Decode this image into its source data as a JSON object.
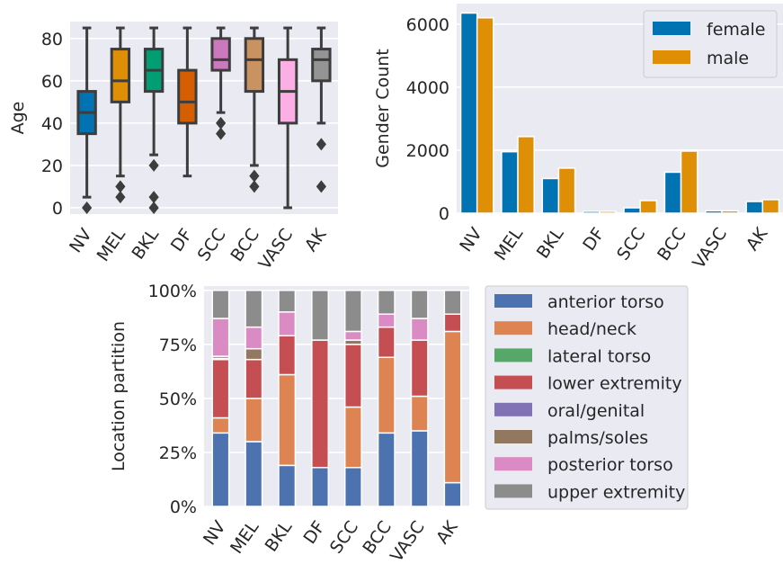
{
  "chart_data": [
    {
      "type": "box",
      "categories": [
        "NV",
        "MEL",
        "BKL",
        "DF",
        "SCC",
        "BCC",
        "VASC",
        "AK"
      ],
      "ylabel": "Age",
      "ylim": [
        -3,
        88
      ],
      "yticks": [
        0,
        20,
        40,
        60,
        80
      ],
      "grid": true,
      "colors": [
        "#0173b2",
        "#de8f05",
        "#029e73",
        "#d55e00",
        "#cc78bc",
        "#ca9161",
        "#fbafe4",
        "#949494"
      ],
      "boxes": [
        {
          "q1": 35,
          "median": 45,
          "q3": 55,
          "whisker_low": 5,
          "whisker_high": 85,
          "outliers": [
            0
          ]
        },
        {
          "q1": 50,
          "median": 60,
          "q3": 75,
          "whisker_low": 15,
          "whisker_high": 85,
          "outliers": [
            5,
            10
          ]
        },
        {
          "q1": 55,
          "median": 65,
          "q3": 75,
          "whisker_low": 25,
          "whisker_high": 85,
          "outliers": [
            0,
            5,
            20
          ]
        },
        {
          "q1": 40,
          "median": 50,
          "q3": 65,
          "whisker_low": 15,
          "whisker_high": 85,
          "outliers": []
        },
        {
          "q1": 65,
          "median": 70,
          "q3": 80,
          "whisker_low": 45,
          "whisker_high": 85,
          "outliers": [
            35,
            40
          ]
        },
        {
          "q1": 55,
          "median": 70,
          "q3": 80,
          "whisker_low": 20,
          "whisker_high": 85,
          "outliers": [
            10,
            15
          ]
        },
        {
          "q1": 40,
          "median": 55,
          "q3": 70,
          "whisker_low": 0,
          "whisker_high": 85,
          "outliers": []
        },
        {
          "q1": 60,
          "median": 70,
          "q3": 75,
          "whisker_low": 40,
          "whisker_high": 85,
          "outliers": [
            10,
            30
          ]
        }
      ]
    },
    {
      "type": "bar",
      "categories": [
        "NV",
        "MEL",
        "BKL",
        "DF",
        "SCC",
        "BCC",
        "VASC",
        "AK"
      ],
      "ylabel": "Gender Count",
      "ylim": [
        0,
        6650
      ],
      "yticks": [
        0,
        2000,
        4000,
        6000
      ],
      "grid": true,
      "legend": "top-right",
      "series": [
        {
          "name": "female",
          "color": "#0173b2",
          "values": [
            6350,
            1950,
            1100,
            60,
            170,
            1300,
            75,
            370
          ]
        },
        {
          "name": "male",
          "color": "#de8f05",
          "values": [
            6200,
            2430,
            1430,
            60,
            400,
            1970,
            75,
            430
          ]
        }
      ]
    },
    {
      "type": "bar",
      "stacked": true,
      "categories": [
        "NV",
        "MEL",
        "BKL",
        "DF",
        "SCC",
        "BCC",
        "VASC",
        "AK"
      ],
      "ylabel": "Location partition",
      "ylim": [
        0,
        1.02
      ],
      "ytick_labels": [
        "0%",
        "25%",
        "50%",
        "75%",
        "100%"
      ],
      "yticks": [
        0,
        0.25,
        0.5,
        0.75,
        1.0
      ],
      "grid": true,
      "legend": "right",
      "series": [
        {
          "name": "anterior torso",
          "color": "#4c72b0",
          "values": [
            0.34,
            0.3,
            0.19,
            0.18,
            0.18,
            0.34,
            0.35,
            0.11
          ]
        },
        {
          "name": "head/neck",
          "color": "#dd8452",
          "values": [
            0.07,
            0.2,
            0.42,
            0.0,
            0.28,
            0.35,
            0.16,
            0.7
          ]
        },
        {
          "name": "lateral torso",
          "color": "#55a868",
          "values": [
            0.0,
            0.0,
            0.0,
            0.0,
            0.0,
            0.0,
            0.0,
            0.0
          ]
        },
        {
          "name": "lower extremity",
          "color": "#c44e52",
          "values": [
            0.27,
            0.18,
            0.18,
            0.59,
            0.29,
            0.14,
            0.26,
            0.08
          ]
        },
        {
          "name": "oral/genital",
          "color": "#8172b3",
          "values": [
            0.005,
            0.0,
            0.0,
            0.0,
            0.0,
            0.0,
            0.0,
            0.0
          ]
        },
        {
          "name": "palms/soles",
          "color": "#937860",
          "values": [
            0.01,
            0.05,
            0.0,
            0.0,
            0.02,
            0.0,
            0.0,
            0.0
          ]
        },
        {
          "name": "posterior torso",
          "color": "#da8bc3",
          "values": [
            0.175,
            0.1,
            0.11,
            0.0,
            0.04,
            0.06,
            0.1,
            0.0
          ]
        },
        {
          "name": "upper extremity",
          "color": "#8c8c8c",
          "values": [
            0.13,
            0.17,
            0.1,
            0.23,
            0.19,
            0.11,
            0.13,
            0.11
          ]
        }
      ]
    }
  ]
}
